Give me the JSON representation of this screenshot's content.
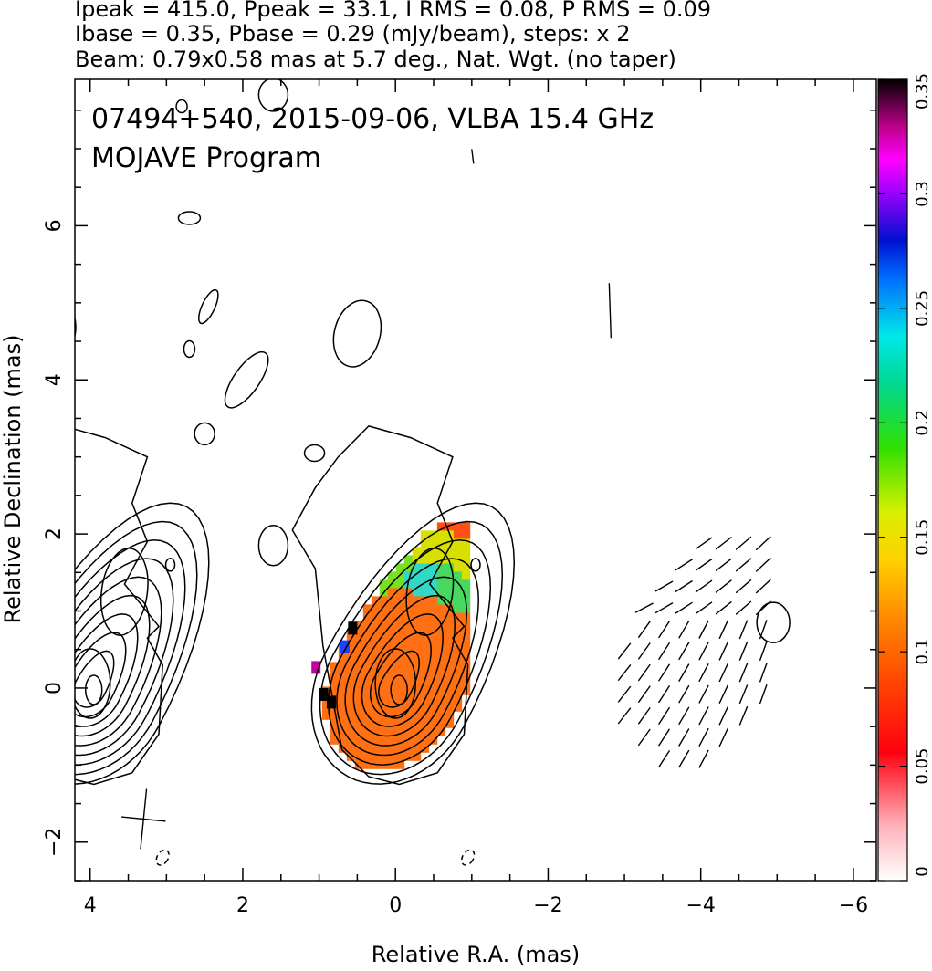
{
  "header": {
    "line1": "Ipeak = 415.0, Ppeak = 33.1, I RMS = 0.08, P RMS = 0.09",
    "line2": "Ibase = 0.35, Pbase = 0.29 (mJy/beam), steps: x 2",
    "line3": "Beam: 0.79x0.58 mas at 5.7 deg., Nat. Wgt. (no taper)"
  },
  "chart_data": {
    "type": "heatmap",
    "title": "07494+540, 2015-09-06, VLBA 15.4 GHz",
    "subtitle": "MOJAVE Program",
    "xlabel": "Relative R.A. (mas)",
    "ylabel": "Relative Declination (mas)",
    "xlim": [
      4.2,
      -6.3
    ],
    "ylim": [
      -2.5,
      7.9
    ],
    "x_ticks": [
      4,
      2,
      0,
      -2,
      -4,
      -6
    ],
    "x_tick_labels": [
      "4",
      "2",
      "0",
      "−2",
      "−4",
      "−6"
    ],
    "y_ticks": [
      -2,
      0,
      2,
      4,
      6
    ],
    "y_tick_labels": [
      "−2",
      "0",
      "2",
      "4",
      "6"
    ],
    "colorbar": {
      "range": [
        0,
        0.35
      ],
      "ticks": [
        0,
        0.05,
        0.1,
        0.15,
        0.2,
        0.25,
        0.3,
        0.35
      ],
      "tick_labels": [
        "0",
        "0.05",
        "0.1",
        "0.15",
        "0.2",
        "0.25",
        "0.3",
        "0.35"
      ]
    },
    "beam": {
      "major_mas": 0.79,
      "minor_mas": 0.58,
      "pa_deg": 5.7,
      "center": [
        3.3,
        -1.7
      ]
    },
    "left_core": {
      "center": [
        0.0,
        0.0
      ],
      "knot": [
        -0.45,
        1.25
      ],
      "n_contours": 9
    },
    "right_copy_offset_x": -4.0
  },
  "colors": {
    "ink": "#000000",
    "background": "#ffffff"
  }
}
